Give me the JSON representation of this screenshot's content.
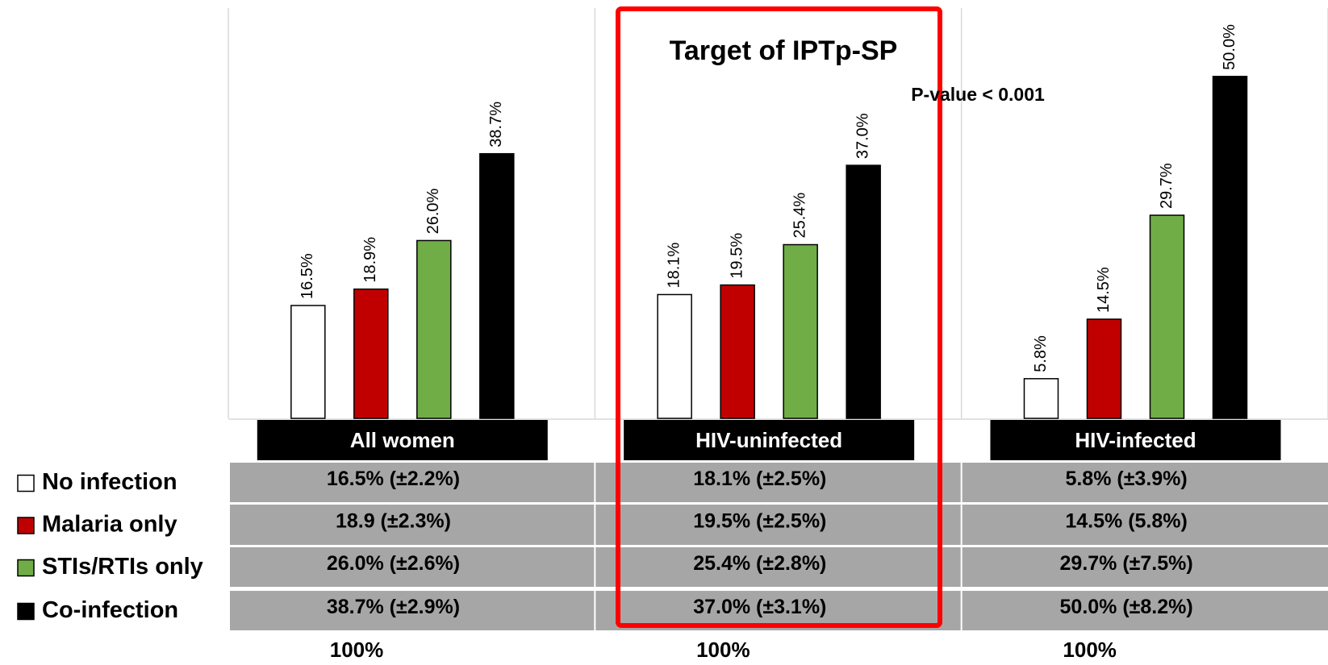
{
  "chart_data": {
    "type": "bar",
    "categories": [
      "All women",
      "HIV-uninfected",
      "HIV-infected"
    ],
    "series": [
      {
        "name": "No infection",
        "color": "#ffffff",
        "values": [
          16.5,
          18.1,
          5.8
        ],
        "value_labels": [
          "16.5%",
          "18.1%",
          "5.8%"
        ]
      },
      {
        "name": "Malaria only",
        "color": "#c00000",
        "values": [
          18.9,
          19.5,
          14.5
        ],
        "value_labels": [
          "18.9%",
          "19.5%",
          "14.5%"
        ]
      },
      {
        "name": "STIs/RTIs only",
        "color": "#70ad47",
        "values": [
          26.0,
          25.4,
          29.7
        ],
        "value_labels": [
          "26.0%",
          "25.4%",
          "29.7%"
        ]
      },
      {
        "name": "Co-infection",
        "color": "#000000",
        "values": [
          38.7,
          37.0,
          50.0
        ],
        "value_labels": [
          "38.7%",
          "37.0%",
          "50.0%"
        ]
      }
    ],
    "ylim": [
      0,
      60
    ],
    "annotations": [
      "Target of IPTp-SP",
      "P-value < 0.001"
    ],
    "table": {
      "rows": [
        [
          "16.5% (±2.2%)",
          "18.1% (±2.5%)",
          "5.8% (±3.9%)"
        ],
        [
          "18.9 (±2.3%)",
          "19.5% (±2.5%)",
          "14.5% (5.8%)"
        ],
        [
          "26.0% (±2.6%)",
          "25.4% (±2.8%)",
          "29.7% (±7.5%)"
        ],
        [
          "38.7% (±2.9%)",
          "37.0% (±3.1%)",
          "50.0% (±8.2%)"
        ]
      ]
    },
    "totals": [
      "100%",
      "100%",
      "100%"
    ]
  }
}
